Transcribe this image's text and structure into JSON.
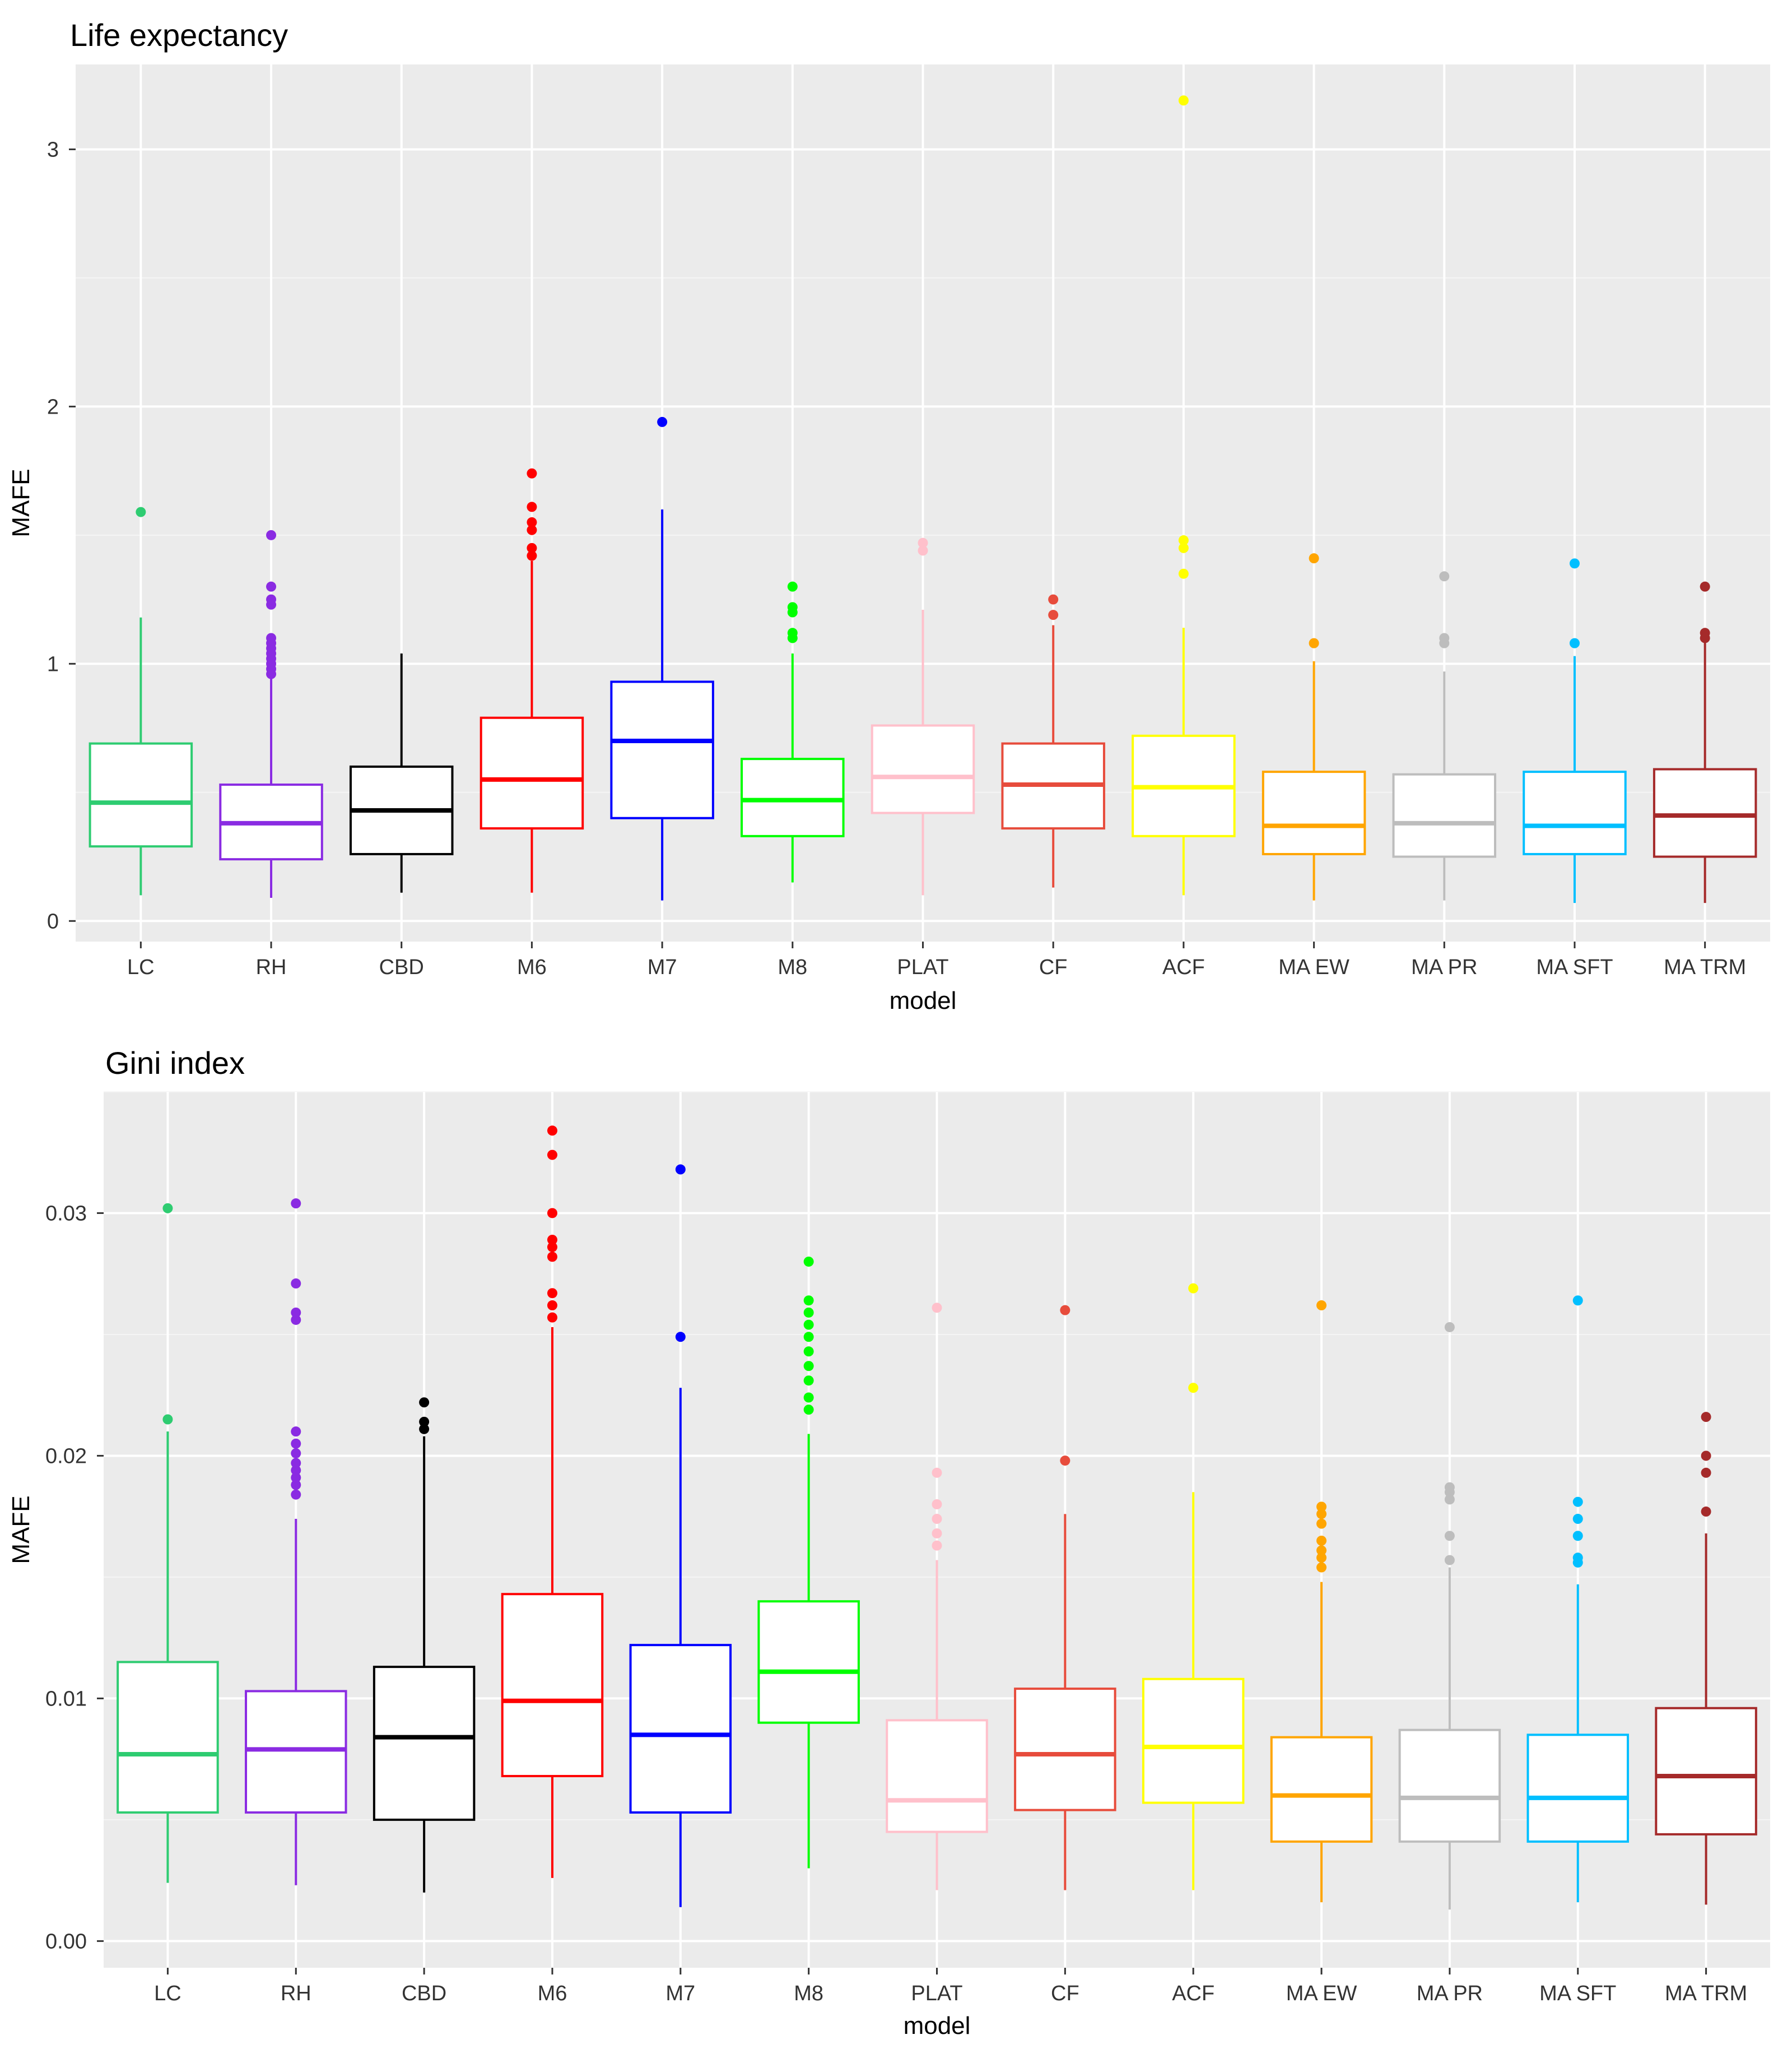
{
  "chart_data": [
    {
      "type": "boxplot",
      "title": "Life expectancy",
      "xlabel": "model",
      "ylabel": "MAFE",
      "ylim": [
        -0.08,
        3.33
      ],
      "yticks": [
        0,
        1,
        2,
        3
      ],
      "ytick_labels": [
        "0",
        "1",
        "2",
        "3"
      ],
      "grid": true,
      "categories": [
        "LC",
        "RH",
        "CBD",
        "M6",
        "M7",
        "M8",
        "PLAT",
        "CF",
        "ACF",
        "MA EW",
        "MA PR",
        "MA SFT",
        "MA TRM"
      ],
      "colors": [
        "#2ecc71",
        "#8a2be2",
        "#000000",
        "#ff0000",
        "#0000ff",
        "#00ff00",
        "#ffc0cb",
        "#e74c3c",
        "#ffff00",
        "#ffa500",
        "#bdbdbd",
        "#00bfff",
        "#a52a2a"
      ],
      "boxes": [
        {
          "min": 0.1,
          "q1": 0.29,
          "median": 0.46,
          "q3": 0.69,
          "max": 1.18,
          "outliers": [
            1.59
          ]
        },
        {
          "min": 0.09,
          "q1": 0.24,
          "median": 0.38,
          "q3": 0.53,
          "max": 0.95,
          "outliers": [
            0.96,
            0.98,
            1.0,
            1.02,
            1.04,
            1.06,
            1.08,
            1.1,
            1.23,
            1.25,
            1.3,
            1.5
          ]
        },
        {
          "min": 0.11,
          "q1": 0.26,
          "median": 0.43,
          "q3": 0.6,
          "max": 1.04,
          "outliers": []
        },
        {
          "min": 0.11,
          "q1": 0.36,
          "median": 0.55,
          "q3": 0.79,
          "max": 1.4,
          "outliers": [
            1.42,
            1.45,
            1.52,
            1.55,
            1.61,
            1.74
          ]
        },
        {
          "min": 0.08,
          "q1": 0.4,
          "median": 0.7,
          "q3": 0.93,
          "max": 1.6,
          "outliers": [
            1.94
          ]
        },
        {
          "min": 0.15,
          "q1": 0.33,
          "median": 0.47,
          "q3": 0.63,
          "max": 1.04,
          "outliers": [
            1.1,
            1.12,
            1.2,
            1.22,
            1.3
          ]
        },
        {
          "min": 0.1,
          "q1": 0.42,
          "median": 0.56,
          "q3": 0.76,
          "max": 1.21,
          "outliers": [
            1.44,
            1.47
          ]
        },
        {
          "min": 0.13,
          "q1": 0.36,
          "median": 0.53,
          "q3": 0.69,
          "max": 1.15,
          "outliers": [
            1.19,
            1.25
          ]
        },
        {
          "min": 0.1,
          "q1": 0.33,
          "median": 0.52,
          "q3": 0.72,
          "max": 1.14,
          "outliers": [
            1.35,
            1.45,
            1.48,
            3.19
          ]
        },
        {
          "min": 0.08,
          "q1": 0.26,
          "median": 0.37,
          "q3": 0.58,
          "max": 1.01,
          "outliers": [
            1.08,
            1.41
          ]
        },
        {
          "min": 0.08,
          "q1": 0.25,
          "median": 0.38,
          "q3": 0.57,
          "max": 0.97,
          "outliers": [
            1.08,
            1.1,
            1.34
          ]
        },
        {
          "min": 0.07,
          "q1": 0.26,
          "median": 0.37,
          "q3": 0.58,
          "max": 1.03,
          "outliers": [
            1.08,
            1.39
          ]
        },
        {
          "min": 0.07,
          "q1": 0.25,
          "median": 0.41,
          "q3": 0.59,
          "max": 1.1,
          "outliers": [
            1.1,
            1.12,
            1.3
          ]
        }
      ]
    },
    {
      "type": "boxplot",
      "title": "Gini index",
      "xlabel": "model",
      "ylabel": "MAFE",
      "ylim": [
        -0.0011,
        0.035
      ],
      "yticks": [
        0,
        0.01,
        0.02,
        0.03
      ],
      "ytick_labels": [
        "0.00",
        "0.01",
        "0.02",
        "0.03"
      ],
      "grid": true,
      "categories": [
        "LC",
        "RH",
        "CBD",
        "M6",
        "M7",
        "M8",
        "PLAT",
        "CF",
        "ACF",
        "MA EW",
        "MA PR",
        "MA SFT",
        "MA TRM"
      ],
      "colors": [
        "#2ecc71",
        "#8a2be2",
        "#000000",
        "#ff0000",
        "#0000ff",
        "#00ff00",
        "#ffc0cb",
        "#e74c3c",
        "#ffff00",
        "#ffa500",
        "#bdbdbd",
        "#00bfff",
        "#a52a2a"
      ],
      "boxes": [
        {
          "min": 0.0024,
          "q1": 0.0053,
          "median": 0.0077,
          "q3": 0.0115,
          "max": 0.021,
          "outliers": [
            0.0215,
            0.0302
          ]
        },
        {
          "min": 0.0023,
          "q1": 0.0053,
          "median": 0.0079,
          "q3": 0.0103,
          "max": 0.0174,
          "outliers": [
            0.0184,
            0.0188,
            0.0191,
            0.0194,
            0.0197,
            0.0201,
            0.0205,
            0.021,
            0.0256,
            0.0259,
            0.0271,
            0.0304
          ]
        },
        {
          "min": 0.002,
          "q1": 0.005,
          "median": 0.0084,
          "q3": 0.0113,
          "max": 0.0208,
          "outliers": [
            0.0211,
            0.0214,
            0.0222
          ]
        },
        {
          "min": 0.0026,
          "q1": 0.0068,
          "median": 0.0099,
          "q3": 0.0143,
          "max": 0.0253,
          "outliers": [
            0.0257,
            0.0262,
            0.0267,
            0.0282,
            0.0286,
            0.0289,
            0.03,
            0.0324,
            0.0334
          ]
        },
        {
          "min": 0.0014,
          "q1": 0.0053,
          "median": 0.0085,
          "q3": 0.0122,
          "max": 0.0228,
          "outliers": [
            0.0249,
            0.0318
          ]
        },
        {
          "min": 0.003,
          "q1": 0.009,
          "median": 0.0111,
          "q3": 0.014,
          "max": 0.0209,
          "outliers": [
            0.0219,
            0.0224,
            0.0231,
            0.0237,
            0.0243,
            0.0249,
            0.0254,
            0.0259,
            0.0264,
            0.028
          ]
        },
        {
          "min": 0.0021,
          "q1": 0.0045,
          "median": 0.0058,
          "q3": 0.0091,
          "max": 0.0157,
          "outliers": [
            0.0163,
            0.0168,
            0.0174,
            0.018,
            0.0193,
            0.0261
          ]
        },
        {
          "min": 0.0021,
          "q1": 0.0054,
          "median": 0.0077,
          "q3": 0.0104,
          "max": 0.0176,
          "outliers": [
            0.0198,
            0.026
          ]
        },
        {
          "min": 0.0021,
          "q1": 0.0057,
          "median": 0.008,
          "q3": 0.0108,
          "max": 0.0185,
          "outliers": [
            0.0228,
            0.0269
          ]
        },
        {
          "min": 0.0016,
          "q1": 0.0041,
          "median": 0.006,
          "q3": 0.0084,
          "max": 0.0148,
          "outliers": [
            0.0154,
            0.0158,
            0.0161,
            0.0165,
            0.0172,
            0.0176,
            0.0179,
            0.0262
          ]
        },
        {
          "min": 0.0013,
          "q1": 0.0041,
          "median": 0.0059,
          "q3": 0.0087,
          "max": 0.0154,
          "outliers": [
            0.0157,
            0.0167,
            0.0182,
            0.0185,
            0.0187,
            0.0253
          ]
        },
        {
          "min": 0.0016,
          "q1": 0.0041,
          "median": 0.0059,
          "q3": 0.0085,
          "max": 0.0147,
          "outliers": [
            0.0156,
            0.0158,
            0.0167,
            0.0174,
            0.0181,
            0.0264
          ]
        },
        {
          "min": 0.0015,
          "q1": 0.0044,
          "median": 0.0068,
          "q3": 0.0096,
          "max": 0.0168,
          "outliers": [
            0.0177,
            0.0193,
            0.02,
            0.0216
          ]
        }
      ]
    }
  ]
}
